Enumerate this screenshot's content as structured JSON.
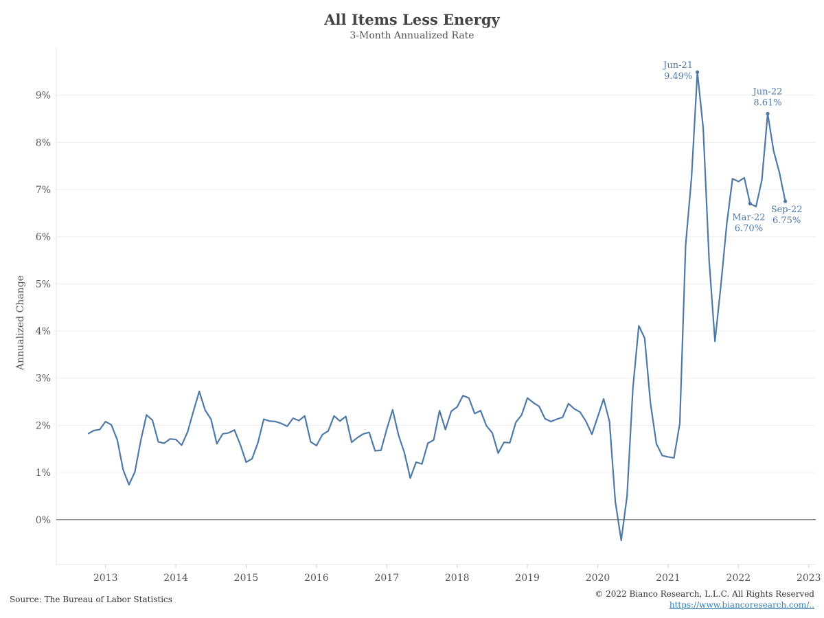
{
  "chart_data": {
    "type": "line",
    "title": "All Items Less Energy",
    "subtitle": "3-Month Annualized Rate",
    "ylabel": "Annualized Change",
    "xlabel": "",
    "ylim": [
      -0.95,
      10
    ],
    "yticks": [
      0,
      1,
      2,
      3,
      4,
      5,
      6,
      7,
      8,
      9
    ],
    "ytick_labels": [
      "0%",
      "1%",
      "2%",
      "3%",
      "4%",
      "5%",
      "6%",
      "7%",
      "8%",
      "9%"
    ],
    "xlim": [
      2012.3,
      2023.1
    ],
    "xticks": [
      2013,
      2014,
      2015,
      2016,
      2017,
      2018,
      2019,
      2020,
      2021,
      2022,
      2023
    ],
    "xtick_labels": [
      "2013",
      "2014",
      "2015",
      "2016",
      "2017",
      "2018",
      "2019",
      "2020",
      "2021",
      "2022",
      "2023"
    ],
    "zero_line": true,
    "grid": true,
    "line_color": "#4e79a7",
    "start": {
      "year": 2012,
      "month": 10
    },
    "values": [
      1.82,
      1.89,
      1.91,
      2.08,
      2.01,
      1.69,
      1.06,
      0.74,
      1.01,
      1.67,
      2.22,
      2.11,
      1.65,
      1.62,
      1.71,
      1.7,
      1.58,
      1.86,
      2.3,
      2.72,
      2.32,
      2.13,
      1.61,
      1.82,
      1.84,
      1.9,
      1.59,
      1.22,
      1.29,
      1.63,
      2.13,
      2.09,
      2.08,
      2.04,
      1.98,
      2.15,
      2.1,
      2.2,
      1.65,
      1.57,
      1.8,
      1.88,
      2.2,
      2.09,
      2.19,
      1.64,
      1.74,
      1.82,
      1.85,
      1.46,
      1.47,
      1.92,
      2.33,
      1.79,
      1.42,
      0.88,
      1.22,
      1.18,
      1.62,
      1.69,
      2.31,
      1.91,
      2.3,
      2.39,
      2.63,
      2.58,
      2.25,
      2.31,
      1.99,
      1.84,
      1.41,
      1.64,
      1.63,
      2.06,
      2.22,
      2.58,
      2.48,
      2.4,
      2.14,
      2.08,
      2.13,
      2.17,
      2.46,
      2.35,
      2.28,
      2.08,
      1.81,
      2.18,
      2.56,
      2.08,
      0.38,
      -0.44,
      0.5,
      2.79,
      4.11,
      3.85,
      2.47,
      1.61,
      1.36,
      1.33,
      1.31,
      2.04,
      5.82,
      7.26,
      9.49,
      8.3,
      5.5,
      3.78,
      4.96,
      6.26,
      7.23,
      7.17,
      7.25,
      6.7,
      6.64,
      7.2,
      8.61,
      7.82,
      7.36,
      6.75
    ],
    "annotations": [
      {
        "label": "Jun-21",
        "value_label": "9.49%",
        "value": 9.49
      },
      {
        "label": "Jun-22",
        "value_label": "8.61%",
        "value": 8.61
      },
      {
        "label": "Mar-22",
        "value_label": "6.70%",
        "value": 6.7
      },
      {
        "label": "Sep-22",
        "value_label": "6.75%",
        "value": 6.75
      }
    ]
  },
  "footer": {
    "source": "Source: The Bureau of Labor Statistics",
    "copyright": "© 2022 Bianco Research, L.L.C. All Rights Reserved",
    "link": "https://www.biancoresearch.com/.."
  }
}
